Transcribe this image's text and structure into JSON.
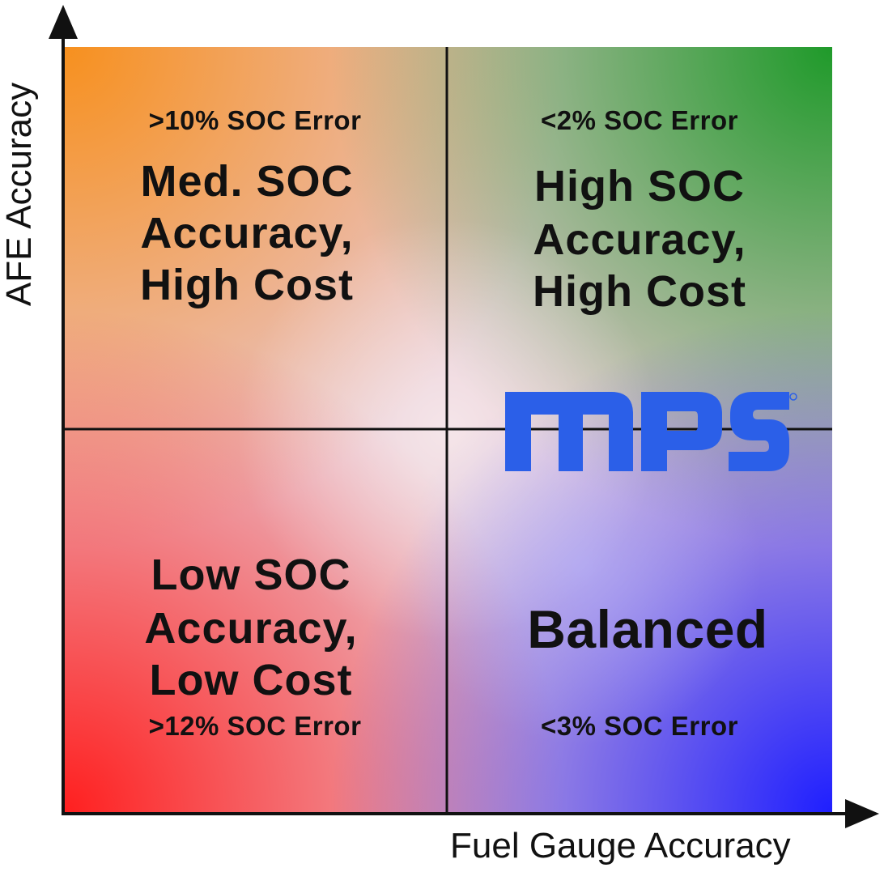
{
  "axes": {
    "y_label": "AFE Accuracy",
    "x_label": "Fuel Gauge Accuracy"
  },
  "quadrants": {
    "top_left": {
      "error": ">10% SOC Error",
      "line1": "Med. SOC",
      "line2": "Accuracy,",
      "line3": "High Cost"
    },
    "top_right": {
      "error": "<2% SOC Error",
      "line1": "High SOC",
      "line2": "Accuracy,",
      "line3": "High Cost"
    },
    "bottom_left": {
      "line1": "Low SOC",
      "line2": "Accuracy,",
      "line3": "Low Cost",
      "error": ">12% SOC Error"
    },
    "bottom_right": {
      "title": "Balanced",
      "error": "<3% SOC Error"
    }
  },
  "logo": {
    "text": "MPS",
    "color": "#2b5fe8"
  },
  "colors": {
    "top_left": "#f7901e",
    "top_right": "#1f9a2a",
    "bottom_left": "#ff1f1f",
    "bottom_right": "#1f1fff",
    "center": "#f3e3ea",
    "axis": "#111111"
  }
}
